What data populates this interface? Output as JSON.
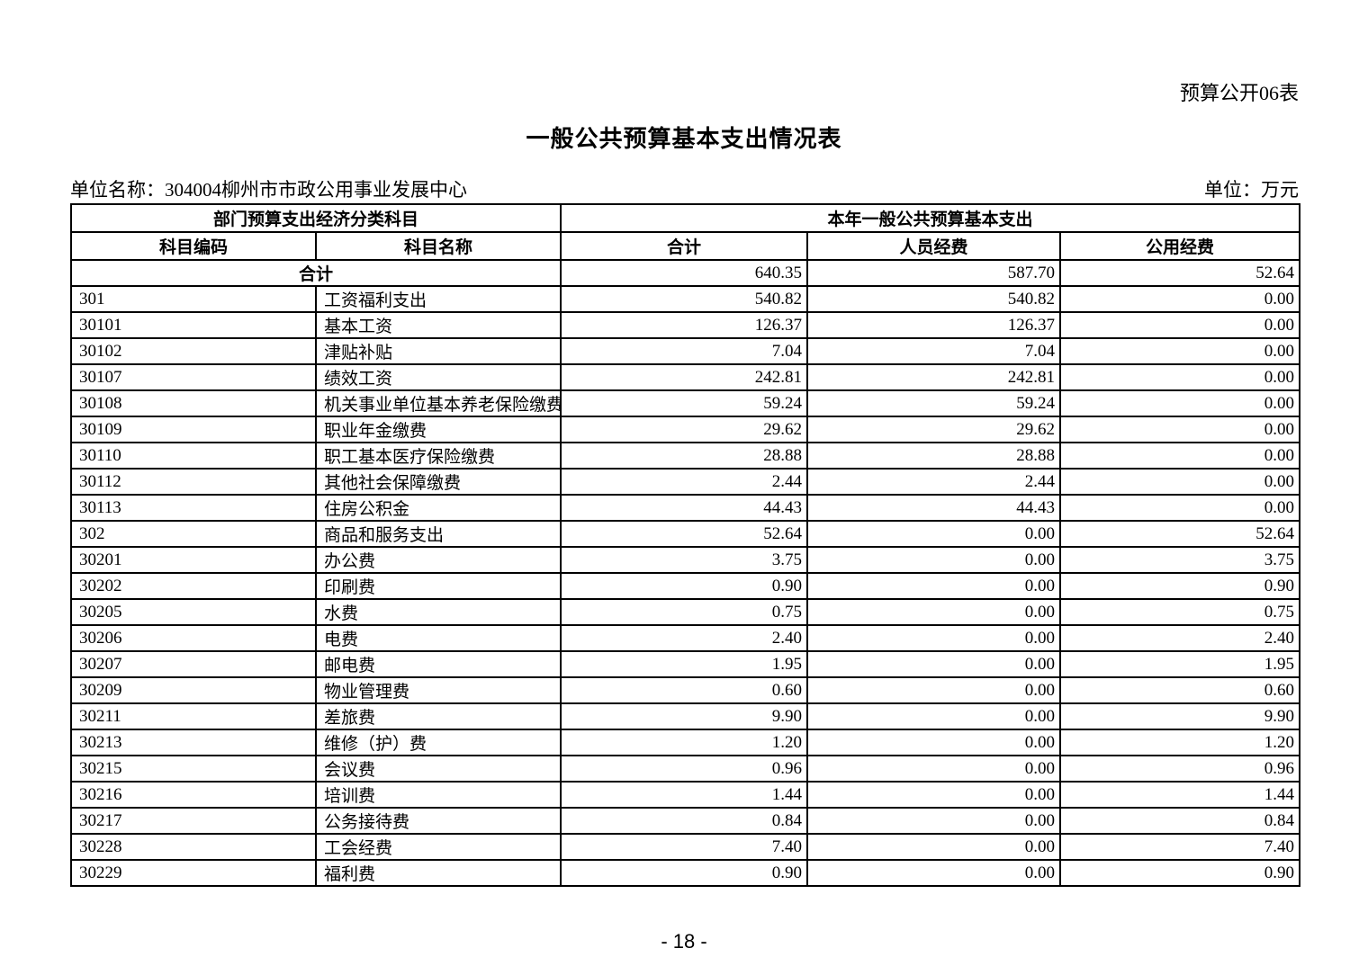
{
  "page": {
    "corner_label": "预算公开06表",
    "title": "一般公共预算基本支出情况表",
    "unit_name": "单位名称：304004柳州市市政公用事业发展中心",
    "unit_scale": "单位：万元",
    "page_number": "- 18 -"
  },
  "table": {
    "header_groups": {
      "left": "部门预算支出经济分类科目",
      "right": "本年一般公共预算基本支出"
    },
    "columns": {
      "code": "科目编码",
      "name": "科目名称",
      "total": "合计",
      "personnel": "人员经费",
      "public": "公用经费"
    },
    "total_row": {
      "label": "合计",
      "total": "640.35",
      "personnel": "587.70",
      "public": "52.64"
    },
    "rows": [
      {
        "code": "301",
        "name": "工资福利支出",
        "total": "540.82",
        "personnel": "540.82",
        "public": "0.00"
      },
      {
        "code": "30101",
        "name": "基本工资",
        "total": "126.37",
        "personnel": "126.37",
        "public": "0.00"
      },
      {
        "code": "30102",
        "name": "津贴补贴",
        "total": "7.04",
        "personnel": "7.04",
        "public": "0.00"
      },
      {
        "code": "30107",
        "name": "绩效工资",
        "total": "242.81",
        "personnel": "242.81",
        "public": "0.00"
      },
      {
        "code": "30108",
        "name": "机关事业单位基本养老保险缴费",
        "total": "59.24",
        "personnel": "59.24",
        "public": "0.00"
      },
      {
        "code": "30109",
        "name": "职业年金缴费",
        "total": "29.62",
        "personnel": "29.62",
        "public": "0.00"
      },
      {
        "code": "30110",
        "name": "职工基本医疗保险缴费",
        "total": "28.88",
        "personnel": "28.88",
        "public": "0.00"
      },
      {
        "code": "30112",
        "name": "其他社会保障缴费",
        "total": "2.44",
        "personnel": "2.44",
        "public": "0.00"
      },
      {
        "code": "30113",
        "name": "住房公积金",
        "total": "44.43",
        "personnel": "44.43",
        "public": "0.00"
      },
      {
        "code": "302",
        "name": "商品和服务支出",
        "total": "52.64",
        "personnel": "0.00",
        "public": "52.64"
      },
      {
        "code": "30201",
        "name": "办公费",
        "total": "3.75",
        "personnel": "0.00",
        "public": "3.75"
      },
      {
        "code": "30202",
        "name": "印刷费",
        "total": "0.90",
        "personnel": "0.00",
        "public": "0.90"
      },
      {
        "code": "30205",
        "name": "水费",
        "total": "0.75",
        "personnel": "0.00",
        "public": "0.75"
      },
      {
        "code": "30206",
        "name": "电费",
        "total": "2.40",
        "personnel": "0.00",
        "public": "2.40"
      },
      {
        "code": "30207",
        "name": "邮电费",
        "total": "1.95",
        "personnel": "0.00",
        "public": "1.95"
      },
      {
        "code": "30209",
        "name": "物业管理费",
        "total": "0.60",
        "personnel": "0.00",
        "public": "0.60"
      },
      {
        "code": "30211",
        "name": "差旅费",
        "total": "9.90",
        "personnel": "0.00",
        "public": "9.90"
      },
      {
        "code": "30213",
        "name": "维修（护）费",
        "total": "1.20",
        "personnel": "0.00",
        "public": "1.20"
      },
      {
        "code": "30215",
        "name": "会议费",
        "total": "0.96",
        "personnel": "0.00",
        "public": "0.96"
      },
      {
        "code": "30216",
        "name": "培训费",
        "total": "1.44",
        "personnel": "0.00",
        "public": "1.44"
      },
      {
        "code": "30217",
        "name": "公务接待费",
        "total": "0.84",
        "personnel": "0.00",
        "public": "0.84"
      },
      {
        "code": "30228",
        "name": "工会经费",
        "total": "7.40",
        "personnel": "0.00",
        "public": "7.40"
      },
      {
        "code": "30229",
        "name": "福利费",
        "total": "0.90",
        "personnel": "0.00",
        "public": "0.90"
      }
    ]
  }
}
